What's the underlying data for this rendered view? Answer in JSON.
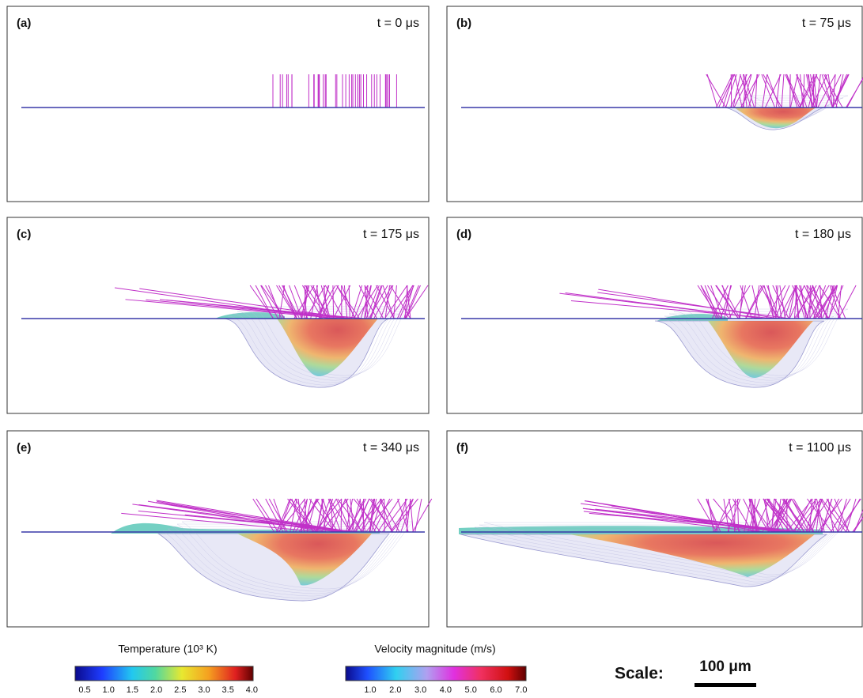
{
  "panels": [
    {
      "label": "(a)",
      "time": "t = 0 μs"
    },
    {
      "label": "(b)",
      "time": "t = 75 μs"
    },
    {
      "label": "(c)",
      "time": "t = 175 μs"
    },
    {
      "label": "(d)",
      "time": "t = 180 μs"
    },
    {
      "label": "(e)",
      "time": "t = 340 μs"
    },
    {
      "label": "(f)",
      "time": "t = 1100 μs"
    }
  ],
  "colorbars": [
    {
      "title": "Temperature (10³ K)",
      "ticks": [
        "0.5",
        "1.0",
        "1.5",
        "2.0",
        "2.5",
        "3.0",
        "3.5",
        "4.0"
      ]
    },
    {
      "title": "Velocity magnitude (m/s)",
      "ticks": [
        "1.0",
        "2.0",
        "3.0",
        "4.0",
        "5.0",
        "6.0",
        "7.0"
      ]
    }
  ],
  "scale": {
    "label": "Scale:",
    "length": "100 μm"
  }
}
